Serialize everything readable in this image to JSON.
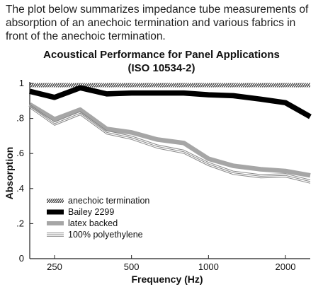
{
  "intro_text": "The plot below summarizes impedance tube measurements of absorption of an anechoic termination and various fabrics in front of the anechoic termination.",
  "chart_data": {
    "type": "line",
    "title": "Acoustical Performance for Panel Applications",
    "subtitle": "(ISO 10534-2)",
    "xlabel": "Frequency (Hz)",
    "ylabel": "Absorption",
    "x_scale": "log",
    "xlim": [
      200,
      2500
    ],
    "ylim": [
      0,
      1.0
    ],
    "x_ticks": [
      {
        "value": 250,
        "label": "250"
      },
      {
        "value": 500,
        "label": "500"
      },
      {
        "value": 1000,
        "label": "1000"
      },
      {
        "value": 2000,
        "label": "2000"
      }
    ],
    "y_ticks": [
      {
        "value": 0,
        "label": "0"
      },
      {
        "value": 0.2,
        "label": ".2"
      },
      {
        "value": 0.4,
        "label": ".4"
      },
      {
        "value": 0.6,
        "label": ".6"
      },
      {
        "value": 0.8,
        "label": ".8"
      },
      {
        "value": 1.0,
        "label": "1"
      }
    ],
    "grid": false,
    "legend_position": "bottom-left",
    "x": [
      200,
      250,
      315,
      400,
      500,
      630,
      800,
      1000,
      1250,
      1600,
      2000,
      2500
    ],
    "series": [
      {
        "name": "anechoic termination",
        "style": "hatched",
        "color": "#222222",
        "values": [
          0.99,
          0.99,
          0.99,
          0.99,
          0.99,
          0.99,
          0.99,
          0.99,
          0.99,
          0.99,
          0.99,
          0.99
        ]
      },
      {
        "name": "Bailey 2299",
        "style": "thick",
        "color": "#000000",
        "values": [
          0.955,
          0.92,
          0.975,
          0.94,
          0.945,
          0.945,
          0.945,
          0.935,
          0.93,
          0.91,
          0.89,
          0.81
        ]
      },
      {
        "name": "latex backed",
        "style": "gray",
        "color": "#a6a6a6",
        "values": [
          0.88,
          0.795,
          0.85,
          0.74,
          0.72,
          0.68,
          0.66,
          0.57,
          0.53,
          0.51,
          0.5,
          0.475
        ]
      },
      {
        "name": "100% polyethylene",
        "style": "triple",
        "color": "#888888",
        "values": [
          0.87,
          0.77,
          0.83,
          0.72,
          0.69,
          0.64,
          0.61,
          0.54,
          0.49,
          0.47,
          0.475,
          0.44
        ]
      }
    ]
  }
}
